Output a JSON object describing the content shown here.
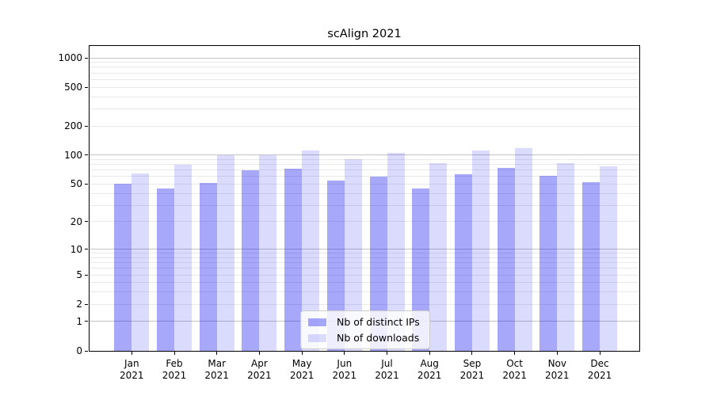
{
  "title": "scAlign 2021",
  "chart_data": {
    "type": "bar",
    "title": "scAlign 2021",
    "categories": [
      "Jan 2021",
      "Feb 2021",
      "Mar 2021",
      "Apr 2021",
      "May 2021",
      "Jun 2021",
      "Jul 2021",
      "Aug 2021",
      "Sep 2021",
      "Oct 2021",
      "Nov 2021",
      "Dec 2021"
    ],
    "month_labels": [
      "Jan",
      "Feb",
      "Mar",
      "Apr",
      "May",
      "Jun",
      "Jul",
      "Aug",
      "Sep",
      "Oct",
      "Nov",
      "Dec"
    ],
    "year_label": "2021",
    "series": [
      {
        "name": "Nb of distinct IPs",
        "color": "rgba(0,0,240,0.34)",
        "values": [
          50,
          45,
          51,
          69,
          73,
          54,
          60,
          45,
          63,
          74,
          61,
          52
        ]
      },
      {
        "name": "Nb of downloads",
        "color": "rgba(0,0,240,0.14)",
        "values": [
          64,
          79,
          100,
          100,
          112,
          90,
          105,
          82,
          112,
          119,
          83,
          76
        ]
      }
    ],
    "xlabel": "",
    "ylabel": "",
    "yscale": "log1p",
    "yticks": [
      0,
      1,
      2,
      5,
      10,
      20,
      50,
      100,
      200,
      500,
      1000
    ],
    "ylim": [
      0,
      1325
    ],
    "grid": "both",
    "legend_position": "lower center"
  },
  "colors": {
    "grid_major": "#c4c4c4",
    "grid_minor": "#e9e9e9",
    "spine": "#000000",
    "text": "#000000",
    "legend_border": "#cccccc",
    "legend_background": "rgba(255,255,255,0.8)"
  }
}
